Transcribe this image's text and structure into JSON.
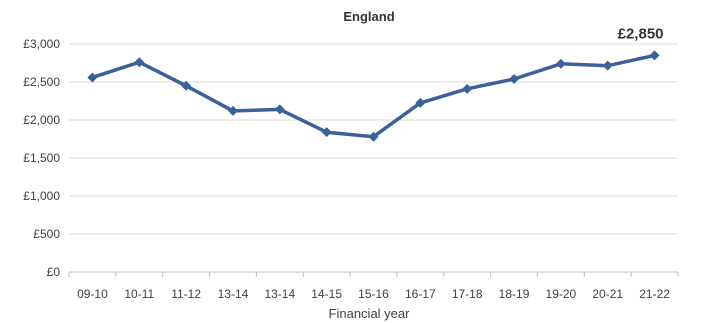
{
  "chart_data": {
    "type": "line",
    "title": "England",
    "xlabel": "Financial year",
    "ylabel": "",
    "categories": [
      "09-10",
      "10-11",
      "11-12",
      "13-14",
      "13-14",
      "14-15",
      "15-16",
      "16-17",
      "17-18",
      "18-19",
      "19-20",
      "20-21",
      "21-22"
    ],
    "series": [
      {
        "values": [
          2560,
          2760,
          2450,
          2120,
          2140,
          1840,
          1780,
          2225,
          2410,
          2540,
          2740,
          2715,
          2850
        ]
      }
    ],
    "ylim": [
      0,
      3000
    ],
    "yticks": [
      0,
      500,
      1000,
      1500,
      2000,
      2500,
      3000
    ],
    "ytick_labels": [
      "£0",
      "£500",
      "£1,000",
      "£1,500",
      "£2,000",
      "£2,500",
      "£3,000"
    ],
    "annotations": [
      {
        "index": 12,
        "text": "£2,850"
      }
    ],
    "grid": true,
    "legend": "none",
    "colors": {
      "line": "#3c6098",
      "grid": "#d9d9d9",
      "axis": "#bfbfbf"
    }
  }
}
